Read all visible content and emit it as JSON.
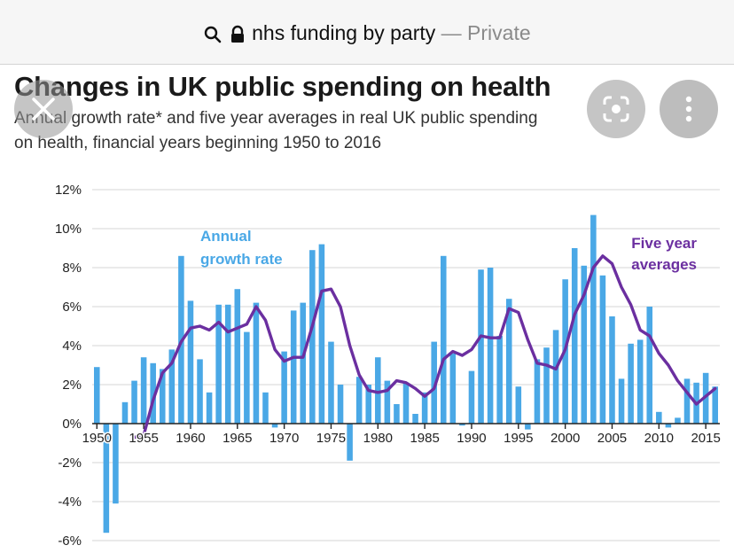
{
  "browser": {
    "url_text": "nhs funding by party",
    "separator": " — ",
    "private_label": "Private",
    "search_icon": "search-icon",
    "lock_icon": "lock-icon"
  },
  "overlay": {
    "close_icon": "close-icon",
    "lens_icon": "lens-icon",
    "more_icon": "more-icon"
  },
  "colors": {
    "bars": "#4aa8e6",
    "line": "#6b2fa0",
    "annual_label": "#4aa8e6",
    "fiveyear_label": "#6b2fa0"
  },
  "chart_data": {
    "type": "bar",
    "title": "Changes in UK public spending on health",
    "subtitle_line1": "Annual growth rate* and five year averages in real UK public spending",
    "subtitle_line2": "on health, financial years beginning 1950 to 2016",
    "ylim": [
      -6,
      12
    ],
    "yticks": [
      "12%",
      "10%",
      "8%",
      "6%",
      "4%",
      "2%",
      "0%",
      "-2%",
      "-4%",
      "-6%"
    ],
    "ytick_values": [
      12,
      10,
      8,
      6,
      4,
      2,
      0,
      -2,
      -4,
      -6
    ],
    "xticks": [
      "1950",
      "1955",
      "1960",
      "1965",
      "1970",
      "1975",
      "1980",
      "1985",
      "1990",
      "1995",
      "2000",
      "2005",
      "2010",
      "2015"
    ],
    "xtick_values": [
      1950,
      1955,
      1960,
      1965,
      1970,
      1975,
      1980,
      1985,
      1990,
      1995,
      2000,
      2005,
      2010,
      2015
    ],
    "annotations": {
      "annual_line1": "Annual",
      "annual_line2": "growth rate",
      "fiveyear_line1": "Five year",
      "fiveyear_line2": "averages"
    },
    "series": [
      {
        "name": "Annual growth rate",
        "type": "bar",
        "x": [
          1950,
          1951,
          1952,
          1953,
          1954,
          1955,
          1956,
          1957,
          1958,
          1959,
          1960,
          1961,
          1962,
          1963,
          1964,
          1965,
          1966,
          1967,
          1968,
          1969,
          1970,
          1971,
          1972,
          1973,
          1974,
          1975,
          1976,
          1977,
          1978,
          1979,
          1980,
          1981,
          1982,
          1983,
          1984,
          1985,
          1986,
          1987,
          1988,
          1989,
          1990,
          1991,
          1992,
          1993,
          1994,
          1995,
          1996,
          1997,
          1998,
          1999,
          2000,
          2001,
          2002,
          2003,
          2004,
          2005,
          2006,
          2007,
          2008,
          2009,
          2010,
          2011,
          2012,
          2013,
          2014,
          2015,
          2016
        ],
        "values": [
          2.9,
          -5.6,
          -4.1,
          1.1,
          2.2,
          3.4,
          3.1,
          2.8,
          3.8,
          8.6,
          6.3,
          3.3,
          1.6,
          6.1,
          6.1,
          6.9,
          4.7,
          6.2,
          1.6,
          -0.2,
          3.7,
          5.8,
          6.2,
          8.9,
          9.2,
          4.2,
          2.0,
          -1.9,
          2.4,
          2.0,
          3.4,
          2.2,
          1.0,
          2.1,
          0.5,
          1.6,
          4.2,
          8.6,
          3.6,
          -0.1,
          2.7,
          7.9,
          8.0,
          4.5,
          6.4,
          1.9,
          -0.3,
          3.3,
          3.9,
          4.8,
          7.4,
          9.0,
          8.1,
          10.7,
          7.6,
          5.5,
          2.3,
          4.1,
          4.3,
          6.0,
          0.6,
          -0.2,
          0.3,
          2.3,
          2.1,
          2.6,
          1.9
        ]
      },
      {
        "name": "Five year averages",
        "type": "line",
        "x": [
          1954,
          1955,
          1956,
          1957,
          1958,
          1959,
          1960,
          1961,
          1962,
          1963,
          1964,
          1965,
          1966,
          1967,
          1968,
          1969,
          1970,
          1971,
          1972,
          1973,
          1974,
          1975,
          1976,
          1977,
          1978,
          1979,
          1980,
          1981,
          1982,
          1983,
          1984,
          1985,
          1986,
          1987,
          1988,
          1989,
          1990,
          1991,
          1992,
          1993,
          1994,
          1995,
          1996,
          1997,
          1998,
          1999,
          2000,
          2001,
          2002,
          2003,
          2004,
          2005,
          2006,
          2007,
          2008,
          2009,
          2010,
          2011,
          2012,
          2013,
          2014,
          2015,
          2016
        ],
        "values": [
          -0.7,
          -0.6,
          1.2,
          2.6,
          3.1,
          4.2,
          4.9,
          5.0,
          4.8,
          5.2,
          4.7,
          4.9,
          5.1,
          6.0,
          5.3,
          3.8,
          3.2,
          3.4,
          3.4,
          5.0,
          6.8,
          6.9,
          6.0,
          4.0,
          2.5,
          1.7,
          1.6,
          1.7,
          2.2,
          2.1,
          1.8,
          1.4,
          1.8,
          3.3,
          3.7,
          3.5,
          3.8,
          4.5,
          4.4,
          4.4,
          5.9,
          5.7,
          4.3,
          3.1,
          3.0,
          2.8,
          3.8,
          5.6,
          6.6,
          8.0,
          8.6,
          8.2,
          7.0,
          6.1,
          4.8,
          4.5,
          3.6,
          3.0,
          2.2,
          1.6,
          1.0,
          1.4,
          1.8
        ]
      }
    ]
  }
}
